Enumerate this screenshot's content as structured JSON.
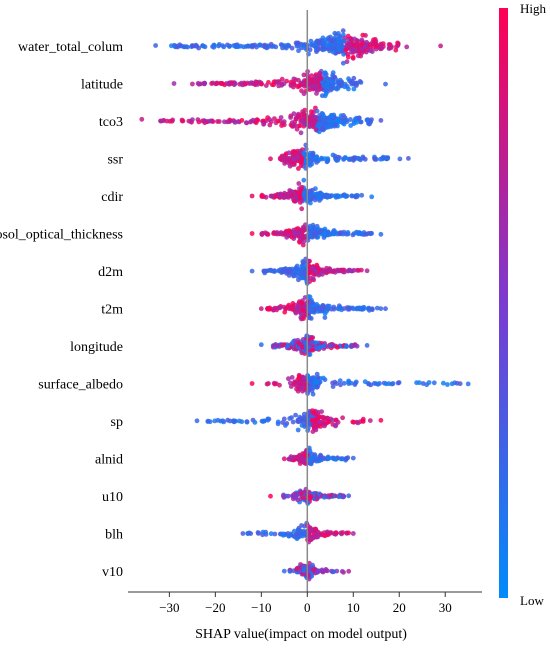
{
  "chart_data": {
    "type": "scatter",
    "subtype": "shap-beeswarm-summary",
    "xlabel": "SHAP value(impact on model output)",
    "xlim": [
      -39,
      38
    ],
    "xticks": [
      -30,
      -20,
      -10,
      0,
      10,
      20,
      30
    ],
    "colorbar": {
      "high_label": "High",
      "low_label": "Low",
      "high_color": "#ff0052",
      "low_color": "#008bfb"
    },
    "grid": false,
    "features": [
      {
        "name": "water_total_colum",
        "min": -33,
        "max": 29,
        "dense_min": -30,
        "dense_max": 20,
        "center": 8,
        "spread": 4.0,
        "density": 1.0,
        "low_side": "negative"
      },
      {
        "name": "latitude",
        "min": -29,
        "max": 17,
        "dense_min": -25,
        "dense_max": 12,
        "center": 3,
        "spread": 2.5,
        "density": 0.75,
        "low_side": "positive"
      },
      {
        "name": "tco3",
        "min": -36,
        "max": 16,
        "dense_min": -32,
        "dense_max": 14,
        "center": 2,
        "spread": 3.0,
        "density": 0.8,
        "low_side": "positive"
      },
      {
        "name": "ssr",
        "min": -8,
        "max": 22,
        "dense_min": -6,
        "dense_max": 21,
        "center": -1,
        "spread": 2.0,
        "density": 0.5,
        "low_side": "positive"
      },
      {
        "name": "cdir",
        "min": -12,
        "max": 14,
        "dense_min": -10,
        "dense_max": 12,
        "center": -1,
        "spread": 2.5,
        "density": 0.55,
        "low_side": "positive"
      },
      {
        "name": "aerosol_optical_thickness",
        "min": -12,
        "max": 16,
        "dense_min": -10,
        "dense_max": 15,
        "center": 0,
        "spread": 2.5,
        "density": 0.55,
        "low_side": "positive"
      },
      {
        "name": "d2m",
        "min": -12,
        "max": 13,
        "dense_min": -10,
        "dense_max": 12,
        "center": 0,
        "spread": 2.5,
        "density": 0.55,
        "low_side": "negative"
      },
      {
        "name": "t2m",
        "min": -10,
        "max": 17,
        "dense_min": -9,
        "dense_max": 16,
        "center": 0,
        "spread": 2.0,
        "density": 0.55,
        "low_side": "positive"
      },
      {
        "name": "longitude",
        "min": -10,
        "max": 13,
        "dense_min": -8,
        "dense_max": 12,
        "center": 0,
        "spread": 2.0,
        "density": 0.5,
        "low_side": "mixed"
      },
      {
        "name": "surface_albedo",
        "min": -12,
        "max": 35,
        "dense_min": -9,
        "dense_max": 34,
        "center": 0,
        "spread": 1.5,
        "density": 0.45,
        "low_side": "positive"
      },
      {
        "name": "sp",
        "min": -24,
        "max": 16,
        "dense_min": -22,
        "dense_max": 14,
        "center": 1,
        "spread": 2.0,
        "density": 0.45,
        "low_side": "negative"
      },
      {
        "name": "alnid",
        "min": -5,
        "max": 10,
        "dense_min": -4,
        "dense_max": 9,
        "center": 0,
        "spread": 1.5,
        "density": 0.35,
        "low_side": "positive"
      },
      {
        "name": "u10",
        "min": -8,
        "max": 9,
        "dense_min": -6,
        "dense_max": 8,
        "center": 0,
        "spread": 1.5,
        "density": 0.35,
        "low_side": "mixed"
      },
      {
        "name": "blh",
        "min": -14,
        "max": 10,
        "dense_min": -13,
        "dense_max": 9,
        "center": 0,
        "spread": 1.5,
        "density": 0.35,
        "low_side": "negative"
      },
      {
        "name": "v10",
        "min": -5,
        "max": 9,
        "dense_min": -4,
        "dense_max": 8,
        "center": 0,
        "spread": 1.2,
        "density": 0.3,
        "low_side": "mixed"
      }
    ]
  }
}
